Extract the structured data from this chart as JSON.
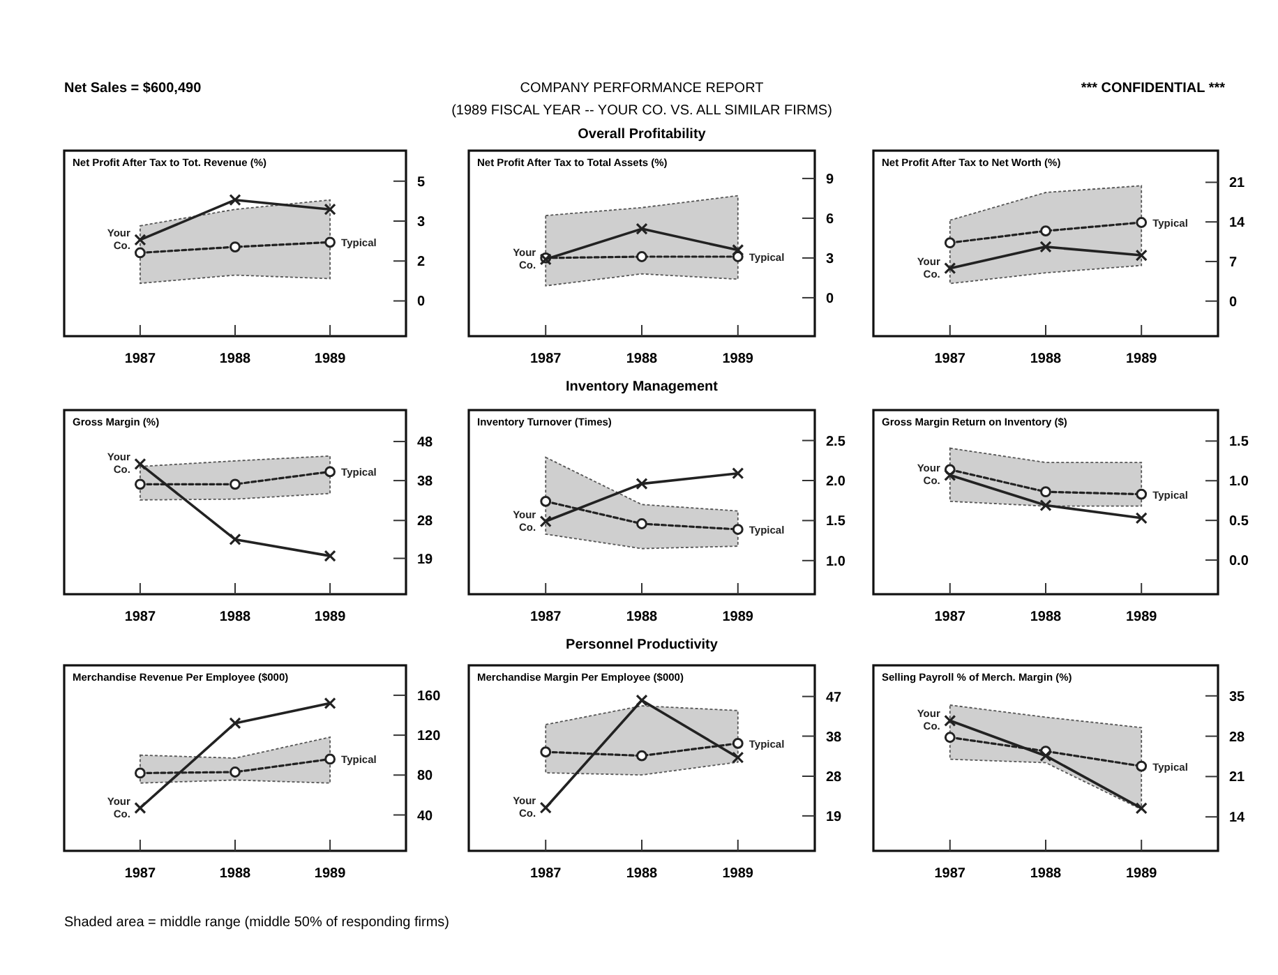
{
  "chart_data": [
    {
      "type": "other",
      "title": "COMPANY PERFORMANCE REPORT",
      "subtitle": "(1989 FISCAL YEAR --  YOUR CO. VS. ALL SIMILAR FIRMS)",
      "annotations": [
        "Net Sales =  $600,490",
        "*** CONFIDENTIAL ***",
        "Overall Profitability",
        "Inventory Management",
        "Personnel Productivity",
        "Shaded area = middle range (middle 50% of responding firms)"
      ]
    },
    {
      "type": "line",
      "title": "Net Profit After Tax to Tot. Revenue (%)",
      "x": [
        1987,
        1988,
        1989
      ],
      "xlim": [
        1986.2,
        1989.8
      ],
      "xticks": [
        1987,
        1988,
        1989
      ],
      "ylim": [
        -1.5,
        6.4
      ],
      "yticks": [
        {
          "value": 0,
          "label": "0"
        },
        {
          "value": 1.7,
          "label": "2"
        },
        {
          "value": 3.4,
          "label": "3"
        },
        {
          "value": 5.1,
          "label": "5"
        }
      ],
      "series": [
        {
          "name": "Your Co.",
          "color": "#222222",
          "marker": "cross",
          "line_style": "solid",
          "values": [
            2.6,
            4.3,
            3.9
          ]
        },
        {
          "name": "Typical",
          "color": "#222222",
          "marker": "circle",
          "line_style": "dashed",
          "values": [
            2.05,
            2.3,
            2.5
          ],
          "lower": [
            0.75,
            1.1,
            0.95
          ],
          "upper": [
            3.2,
            3.9,
            4.3
          ]
        }
      ]
    },
    {
      "type": "line",
      "title": "Net Profit After Tax to Total Assets (%)",
      "x": [
        1987,
        1988,
        1989
      ],
      "xlim": [
        1986.2,
        1989.8
      ],
      "xticks": [
        1987,
        1988,
        1989
      ],
      "ylim": [
        -2.9,
        11.1
      ],
      "yticks": [
        0,
        3,
        6,
        9
      ],
      "series": [
        {
          "name": "Your Co.",
          "color": "#222222",
          "marker": "cross",
          "line_style": "solid",
          "values": [
            2.9,
            5.2,
            3.6
          ]
        },
        {
          "name": "Typical",
          "color": "#222222",
          "marker": "circle",
          "line_style": "dashed",
          "values": [
            3.0,
            3.1,
            3.1
          ],
          "lower": [
            0.9,
            1.8,
            1.4
          ],
          "upper": [
            6.2,
            6.8,
            7.7
          ]
        }
      ]
    },
    {
      "type": "line",
      "title": "Net Profit After Tax to Net Worth (%)",
      "x": [
        1987,
        1988,
        1989
      ],
      "xlim": [
        1986.2,
        1989.8
      ],
      "xticks": [
        1987,
        1988,
        1989
      ],
      "ylim": [
        -6.2,
        26.6
      ],
      "yticks": [
        0,
        7,
        14,
        21
      ],
      "series": [
        {
          "name": "Your Co.",
          "color": "#222222",
          "marker": "cross",
          "line_style": "solid",
          "values": [
            5.8,
            9.6,
            8.1
          ]
        },
        {
          "name": "Typical",
          "color": "#222222",
          "marker": "circle",
          "line_style": "dashed",
          "values": [
            10.3,
            12.4,
            13.9
          ],
          "lower": [
            3.1,
            5.0,
            6.3
          ],
          "upper": [
            14.3,
            19.2,
            20.4
          ]
        }
      ]
    },
    {
      "type": "line",
      "title": "Gross Margin (%)",
      "x": [
        1987,
        1988,
        1989
      ],
      "xlim": [
        1986.2,
        1989.8
      ],
      "xticks": [
        1987,
        1988,
        1989
      ],
      "ylim": [
        10.1,
        55.8
      ],
      "yticks": [
        19,
        {
          "value": 28.4,
          "label": "28"
        },
        {
          "value": 38.3,
          "label": "38"
        },
        48
      ],
      "series": [
        {
          "name": "Your Co.",
          "color": "#222222",
          "marker": "cross",
          "line_style": "solid",
          "values": [
            42.4,
            23.7,
            19.6
          ]
        },
        {
          "name": "Typical",
          "color": "#222222",
          "marker": "circle",
          "line_style": "dashed",
          "values": [
            37.4,
            37.4,
            40.5
          ],
          "lower": [
            33.5,
            33.7,
            35.1
          ],
          "upper": [
            41.8,
            43.2,
            44.4
          ]
        }
      ]
    },
    {
      "type": "line",
      "title": "Inventory Turnover (Times)",
      "x": [
        1987,
        1988,
        1989
      ],
      "xlim": [
        1986.2,
        1989.8
      ],
      "xticks": [
        1987,
        1988,
        1989
      ],
      "ylim": [
        0.58,
        2.88
      ],
      "yticks": [
        {
          "value": 1,
          "label": "1.0"
        },
        1.5,
        {
          "value": 2,
          "label": "2.0"
        },
        2.5
      ],
      "series": [
        {
          "name": "Your Co.",
          "color": "#222222",
          "marker": "cross",
          "line_style": "solid",
          "values": [
            1.49,
            1.96,
            2.09
          ]
        },
        {
          "name": "Typical",
          "color": "#222222",
          "marker": "circle",
          "line_style": "dashed",
          "values": [
            1.74,
            1.46,
            1.39
          ],
          "lower": [
            1.33,
            1.15,
            1.18
          ],
          "upper": [
            2.29,
            1.7,
            1.62
          ]
        }
      ]
    },
    {
      "type": "line",
      "title": "Gross Margin Return on Inventory ($)",
      "x": [
        1987,
        1988,
        1989
      ],
      "xlim": [
        1986.2,
        1989.8
      ],
      "xticks": [
        1987,
        1988,
        1989
      ],
      "ylim": [
        -0.43,
        1.89
      ],
      "yticks": [
        {
          "value": 0,
          "label": "0.0"
        },
        0.5,
        {
          "value": 1,
          "label": "1.0"
        },
        1.5
      ],
      "series": [
        {
          "name": "Your Co.",
          "color": "#222222",
          "marker": "cross",
          "line_style": "solid",
          "values": [
            1.07,
            0.69,
            0.53
          ]
        },
        {
          "name": "Typical",
          "color": "#222222",
          "marker": "circle",
          "line_style": "dashed",
          "values": [
            1.14,
            0.86,
            0.83
          ],
          "lower": [
            0.74,
            0.68,
            0.68
          ],
          "upper": [
            1.41,
            1.23,
            1.23
          ]
        }
      ]
    },
    {
      "type": "line",
      "title": "Merchandise Revenue Per Employee ($000)",
      "x": [
        1987,
        1988,
        1989
      ],
      "xlim": [
        1986.2,
        1989.8
      ],
      "xticks": [
        1987,
        1988,
        1989
      ],
      "ylim": [
        4,
        190
      ],
      "yticks": [
        40,
        80,
        120,
        160
      ],
      "series": [
        {
          "name": "Your Co.",
          "color": "#222222",
          "marker": "cross",
          "line_style": "solid",
          "values": [
            47,
            132,
            152
          ]
        },
        {
          "name": "Typical",
          "color": "#222222",
          "marker": "circle",
          "line_style": "dashed",
          "values": [
            82,
            83,
            96
          ],
          "lower": [
            72,
            75,
            72
          ],
          "upper": [
            100,
            97,
            118
          ]
        }
      ]
    },
    {
      "type": "line",
      "title": "Merchandise Margin Per Employee ($000)",
      "x": [
        1987,
        1988,
        1989
      ],
      "xlim": [
        1986.2,
        1989.8
      ],
      "xticks": [
        1987,
        1988,
        1989
      ],
      "ylim": [
        10.8,
        54.3
      ],
      "yticks": [
        19,
        {
          "value": 28.3,
          "label": "28"
        },
        {
          "value": 37.7,
          "label": "38"
        },
        47
      ],
      "series": [
        {
          "name": "Your Co.",
          "color": "#222222",
          "marker": "cross",
          "line_style": "solid",
          "values": [
            20.9,
            46.1,
            32.7
          ]
        },
        {
          "name": "Typical",
          "color": "#222222",
          "marker": "circle",
          "line_style": "dashed",
          "values": [
            34.0,
            33.1,
            36.0
          ],
          "lower": [
            29.1,
            28.6,
            31.6
          ],
          "upper": [
            40.4,
            44.8,
            43.7
          ]
        }
      ]
    },
    {
      "type": "line",
      "title": "Selling Payroll % of Merch. Margin (%)",
      "x": [
        1987,
        1988,
        1989
      ],
      "xlim": [
        1986.2,
        1989.8
      ],
      "xticks": [
        1987,
        1988,
        1989
      ],
      "ylim": [
        8.1,
        40.3
      ],
      "yticks": [
        14,
        21,
        28,
        35
      ],
      "series": [
        {
          "name": "Your Co.",
          "color": "#222222",
          "marker": "cross",
          "line_style": "solid",
          "values": [
            30.7,
            24.6,
            15.5
          ]
        },
        {
          "name": "Typical",
          "color": "#222222",
          "marker": "circle",
          "line_style": "dashed",
          "values": [
            27.8,
            25.4,
            22.8
          ],
          "lower": [
            24.0,
            23.4,
            15.3
          ],
          "upper": [
            33.4,
            31.3,
            29.5
          ]
        }
      ]
    }
  ]
}
